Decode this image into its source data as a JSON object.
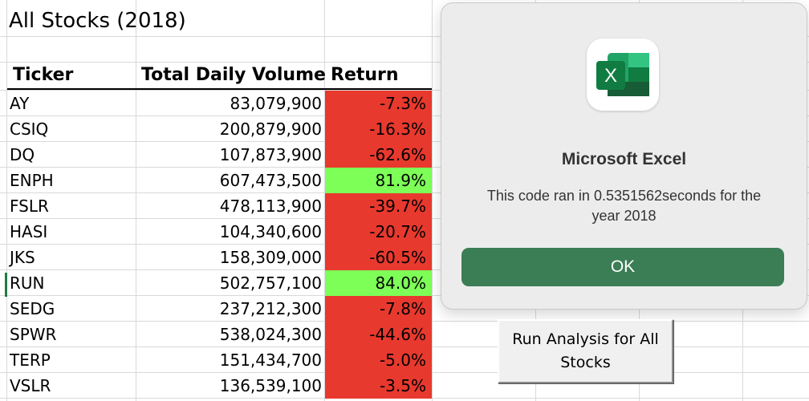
{
  "sheet": {
    "title": "All Stocks (2018)",
    "headers": {
      "ticker": "Ticker",
      "volume": "Total Daily Volume",
      "return": "Return"
    },
    "colors": {
      "negative": "#e8392e",
      "positive": "#7dff57",
      "header_rule": "#000000",
      "gridline": "#d9d9d9"
    },
    "rows": [
      {
        "ticker": "AY",
        "volume": "83,079,900",
        "return": "-7.3%",
        "positive": false
      },
      {
        "ticker": "CSIQ",
        "volume": "200,879,900",
        "return": "-16.3%",
        "positive": false
      },
      {
        "ticker": "DQ",
        "volume": "107,873,900",
        "return": "-62.6%",
        "positive": false
      },
      {
        "ticker": "ENPH",
        "volume": "607,473,500",
        "return": "81.9%",
        "positive": true
      },
      {
        "ticker": "FSLR",
        "volume": "478,113,900",
        "return": "-39.7%",
        "positive": false
      },
      {
        "ticker": "HASI",
        "volume": "104,340,600",
        "return": "-20.7%",
        "positive": false
      },
      {
        "ticker": "JKS",
        "volume": "158,309,000",
        "return": "-60.5%",
        "positive": false
      },
      {
        "ticker": "RUN",
        "volume": "502,757,100",
        "return": "84.0%",
        "positive": true
      },
      {
        "ticker": "SEDG",
        "volume": "237,212,300",
        "return": "-7.8%",
        "positive": false
      },
      {
        "ticker": "SPWR",
        "volume": "538,024,300",
        "return": "-44.6%",
        "positive": false
      },
      {
        "ticker": "TERP",
        "volume": "151,434,700",
        "return": "-5.0%",
        "positive": false
      },
      {
        "ticker": "VSLR",
        "volume": "136,539,100",
        "return": "-3.5%",
        "positive": false
      }
    ]
  },
  "dialog": {
    "icon": "excel-app-icon",
    "icon_letter": "X",
    "title": "Microsoft Excel",
    "message": "This code ran in 0.5351562seconds for the year 2018",
    "ok_label": "OK",
    "colors": {
      "ok_button": "#3b7d55",
      "background": "#ececec"
    }
  },
  "macro_button": {
    "label": "Run Analysis for All Stocks"
  }
}
